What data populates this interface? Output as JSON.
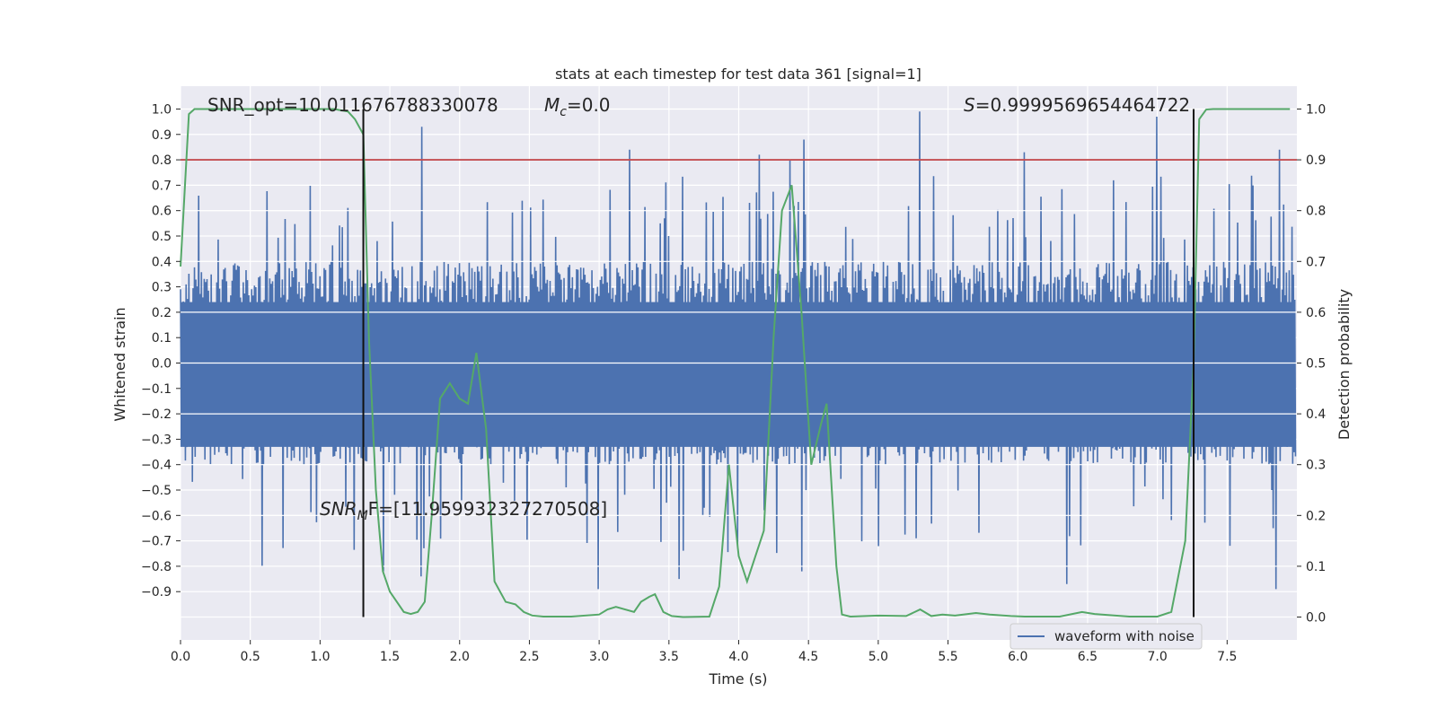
{
  "chart_data": {
    "type": "line",
    "title": "stats at each timestep for test data 361 [signal=1]",
    "xlabel": "Time (s)",
    "ylabel_left": "Whitened strain",
    "ylabel_right": "Detection probability",
    "xlim": [
      0.0,
      8.0
    ],
    "ylim_left": [
      -1.09,
      1.09
    ],
    "ylim_right": [
      -0.045,
      1.045
    ],
    "x_ticks": [
      0.0,
      0.5,
      1.0,
      1.5,
      2.0,
      2.5,
      3.0,
      3.5,
      4.0,
      4.5,
      5.0,
      5.5,
      6.0,
      6.5,
      7.0,
      7.5
    ],
    "x_tick_labels": [
      "0.0",
      "0.5",
      "1.0",
      "1.5",
      "2.0",
      "2.5",
      "3.0",
      "3.5",
      "4.0",
      "4.5",
      "5.0",
      "5.5",
      "6.0",
      "6.5",
      "7.0",
      "7.5"
    ],
    "y_left_ticks": [
      1.0,
      0.9,
      0.8,
      0.7,
      0.6,
      0.5,
      0.4,
      0.3,
      0.2,
      0.1,
      0.0,
      -0.1,
      -0.2,
      -0.3,
      -0.4,
      -0.5,
      -0.6,
      -0.7,
      -0.8,
      -0.9
    ],
    "y_left_tick_labels": [
      "1.0",
      "0.9",
      "0.8",
      "0.7",
      "0.6",
      "0.5",
      "0.4",
      "0.3",
      "0.2",
      "0.1",
      "0.0",
      "−0.1",
      "−0.2",
      "−0.3",
      "−0.4",
      "−0.5",
      "−0.6",
      "−0.7",
      "−0.8",
      "−0.9"
    ],
    "y_right_ticks": [
      1.0,
      0.9,
      0.8,
      0.7,
      0.6,
      0.5,
      0.4,
      0.3,
      0.2,
      0.1,
      0.0
    ],
    "y_right_tick_labels": [
      "1.0",
      "0.9",
      "0.8",
      "0.7",
      "0.6",
      "0.5",
      "0.4",
      "0.3",
      "0.2",
      "0.1",
      "0.0"
    ],
    "annotations": {
      "snr_opt": "SNR_opt=10.011676788330078",
      "mc": "=0.0",
      "mc_symbol": "M",
      "mc_sub": "c",
      "s_score": "=0.9999569654464722",
      "s_symbol": "S",
      "snr_mf_symbol": "SNR",
      "snr_mf_sub": "M",
      "snr_mf_value": "F=[11.959932327270508]"
    },
    "threshold_right": 0.9,
    "vertical_markers_x": [
      1.31,
      7.26
    ],
    "legend": {
      "label": "waveform with noise",
      "placement": "lower-right"
    },
    "waveform": {
      "name": "waveform with noise",
      "color": "#4c72b0",
      "x_start": 0.0,
      "x_end": 7.99,
      "n_samples": 1600,
      "typical_peak": 0.4,
      "large_spikes": [
        {
          "x": 1.73,
          "y": 0.93
        },
        {
          "x": 3.22,
          "y": 0.84
        },
        {
          "x": 4.15,
          "y": 0.82
        },
        {
          "x": 4.37,
          "y": 0.8
        },
        {
          "x": 4.47,
          "y": 0.88
        },
        {
          "x": 5.3,
          "y": 0.99
        },
        {
          "x": 6.05,
          "y": 0.83
        },
        {
          "x": 7.0,
          "y": 0.97
        },
        {
          "x": 7.88,
          "y": 0.84
        },
        {
          "x": 0.58,
          "y": -0.8
        },
        {
          "x": 1.45,
          "y": -0.82
        },
        {
          "x": 1.72,
          "y": -0.84
        },
        {
          "x": 2.99,
          "y": -0.89
        },
        {
          "x": 3.57,
          "y": -0.85
        },
        {
          "x": 4.45,
          "y": -0.82
        },
        {
          "x": 6.35,
          "y": -0.87
        },
        {
          "x": 7.85,
          "y": -0.89
        }
      ]
    },
    "series": [
      {
        "name": "detection probability",
        "axis": "right",
        "color": "#55a868",
        "x": [
          0.0,
          0.06,
          0.1,
          0.2,
          0.4,
          0.6,
          0.8,
          1.0,
          1.1,
          1.2,
          1.25,
          1.31,
          1.35,
          1.4,
          1.45,
          1.5,
          1.6,
          1.65,
          1.7,
          1.75,
          1.8,
          1.86,
          1.93,
          2.0,
          2.06,
          2.12,
          2.19,
          2.25,
          2.33,
          2.4,
          2.46,
          2.52,
          2.6,
          2.8,
          3.0,
          3.06,
          3.12,
          3.25,
          3.3,
          3.36,
          3.4,
          3.46,
          3.52,
          3.6,
          3.79,
          3.86,
          3.93,
          4.0,
          4.06,
          4.12,
          4.18,
          4.25,
          4.31,
          4.38,
          4.45,
          4.52,
          4.59,
          4.63,
          4.7,
          4.74,
          4.8,
          5.0,
          5.2,
          5.3,
          5.38,
          5.46,
          5.55,
          5.7,
          5.8,
          5.95,
          6.05,
          6.3,
          6.46,
          6.55,
          6.7,
          6.8,
          7.0,
          7.1,
          7.2,
          7.26,
          7.3,
          7.35,
          7.4,
          7.6,
          7.8,
          7.95
        ],
        "y": [
          0.69,
          0.99,
          1.0,
          1.0,
          1.0,
          1.0,
          1.0,
          1.0,
          1.0,
          0.995,
          0.98,
          0.95,
          0.55,
          0.25,
          0.09,
          0.05,
          0.01,
          0.006,
          0.01,
          0.03,
          0.2,
          0.43,
          0.46,
          0.43,
          0.42,
          0.52,
          0.37,
          0.07,
          0.03,
          0.025,
          0.01,
          0.003,
          0.001,
          0.001,
          0.005,
          0.015,
          0.02,
          0.01,
          0.03,
          0.04,
          0.045,
          0.01,
          0.002,
          0.0,
          0.001,
          0.06,
          0.3,
          0.12,
          0.07,
          0.12,
          0.17,
          0.55,
          0.8,
          0.85,
          0.6,
          0.3,
          0.38,
          0.42,
          0.1,
          0.005,
          0.001,
          0.003,
          0.002,
          0.015,
          0.002,
          0.005,
          0.003,
          0.008,
          0.005,
          0.002,
          0.001,
          0.001,
          0.01,
          0.006,
          0.003,
          0.001,
          0.001,
          0.01,
          0.15,
          0.5,
          0.98,
          0.999,
          1.0,
          1.0,
          1.0,
          1.0
        ]
      }
    ]
  }
}
